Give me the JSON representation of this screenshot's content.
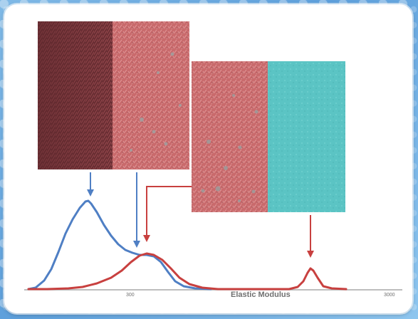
{
  "figure": {
    "axis_label": "Elastic Modulus",
    "ticks": [
      "300",
      "3000"
    ]
  },
  "colors": {
    "blue_curve": "#4f7fc4",
    "red_curve": "#c8403f",
    "image_pink": "#c96a6c",
    "image_dark": "#6b2f34",
    "image_cyan": "#5bc4c4"
  }
}
